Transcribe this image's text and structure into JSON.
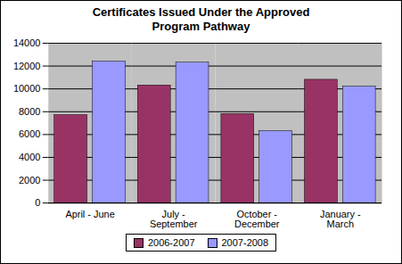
{
  "chart_data": {
    "type": "bar",
    "title": "Certificates Issued Under the Approved Program Pathway",
    "categories": [
      "April - June",
      "July - September",
      "October - December",
      "January - March"
    ],
    "series": [
      {
        "name": "2006-2007",
        "color": "#993366",
        "values": [
          7700,
          10300,
          7800,
          10800
        ]
      },
      {
        "name": "2007-2008",
        "color": "#9999ff",
        "values": [
          12400,
          12300,
          6300,
          10200
        ]
      }
    ],
    "ylim": [
      0,
      14000
    ],
    "yticks": [
      0,
      2000,
      4000,
      6000,
      8000,
      10000,
      12000,
      14000
    ],
    "grid": true,
    "legend": "bottom"
  }
}
